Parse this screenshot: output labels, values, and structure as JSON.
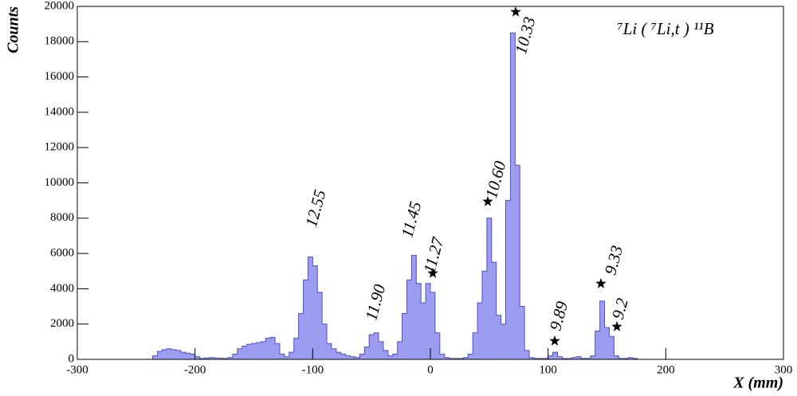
{
  "chart_data": {
    "type": "histogram",
    "title": "⁷Li ( ⁷Li,t ) ¹¹B",
    "x_label": "X (mm)",
    "y_label": "Counts",
    "color": "#9c9cf0",
    "edge_color": "#5050c8",
    "xlim": [
      -300,
      300
    ],
    "xticks": [
      -300,
      -200,
      -100,
      0,
      100,
      200,
      300
    ],
    "ylim": [
      0,
      20000
    ],
    "yticks": [
      0,
      2000,
      4000,
      6000,
      8000,
      10000,
      12000,
      14000,
      16000,
      18000,
      20000
    ],
    "bins": [
      -240,
      -236,
      -232,
      -228,
      -224,
      -220,
      -216,
      -212,
      -208,
      -204,
      -200,
      -196,
      -192,
      -188,
      -184,
      -180,
      -176,
      -172,
      -168,
      -164,
      -160,
      -156,
      -152,
      -148,
      -144,
      -140,
      -136,
      -132,
      -128,
      -124,
      -120,
      -116,
      -112,
      -108,
      -104,
      -100,
      -96,
      -92,
      -88,
      -84,
      -80,
      -76,
      -72,
      -68,
      -64,
      -60,
      -56,
      -52,
      -48,
      -44,
      -40,
      -36,
      -32,
      -28,
      -24,
      -20,
      -16,
      -12,
      -8,
      -4,
      0,
      4,
      8,
      12,
      16,
      20,
      24,
      28,
      32,
      36,
      40,
      44,
      48,
      52,
      56,
      60,
      64,
      68,
      72,
      76,
      80,
      84,
      88,
      92,
      96,
      100,
      104,
      108,
      112,
      116,
      120,
      124,
      128,
      132,
      136,
      140,
      144,
      148,
      152,
      156,
      160,
      164,
      168,
      172,
      176,
      180
    ],
    "values": [
      0,
      200,
      450,
      550,
      600,
      550,
      500,
      400,
      350,
      300,
      150,
      50,
      80,
      100,
      80,
      60,
      50,
      100,
      300,
      600,
      750,
      850,
      900,
      950,
      1000,
      1200,
      1250,
      900,
      300,
      150,
      400,
      1200,
      2600,
      4500,
      5800,
      5300,
      3800,
      2000,
      900,
      600,
      400,
      300,
      200,
      150,
      100,
      300,
      700,
      1400,
      1500,
      1000,
      500,
      200,
      300,
      1000,
      2600,
      4500,
      5900,
      4300,
      3200,
      4300,
      3800,
      1500,
      300,
      100,
      50,
      50,
      50,
      100,
      300,
      1500,
      3200,
      5000,
      8000,
      5500,
      2500,
      2000,
      9000,
      18500,
      11000,
      3000,
      500,
      100,
      50,
      50,
      50,
      200,
      400,
      150,
      50,
      50,
      100,
      150,
      50,
      50,
      200,
      1600,
      3300,
      1800,
      1300,
      200,
      50,
      50,
      100,
      50,
      0
    ],
    "annotations": [
      "12.55",
      "11.90",
      "11.45",
      "11.27",
      "10.60",
      "10.33",
      "9.89",
      "9.33",
      "9.2"
    ]
  }
}
